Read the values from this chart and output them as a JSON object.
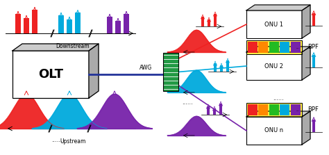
{
  "bg_color": "#ffffff",
  "olt_label": "OLT",
  "awg_label": "AWG",
  "downstream_label": "Downstream",
  "upstream_label": "Upstream",
  "onu_labels": [
    "ONU 1",
    "ONU 2",
    "ONU n"
  ],
  "bpf_label": "BPF",
  "dots6": "......",
  "colors": {
    "red": "#ee2222",
    "cyan": "#00aadd",
    "purple": "#7722aa",
    "awg_green": "#229944",
    "yellow_bpf": "#ffee44",
    "bpf_bar1": "#ee2222",
    "bpf_bar2": "#ff8800",
    "bpf_bar3": "#22bb22",
    "bpf_bar4": "#00aadd",
    "bpf_bar5": "#7722aa",
    "dark_blue": "#223399",
    "box_top": "#cccccc",
    "box_side": "#aaaaaa",
    "black": "#000000"
  }
}
